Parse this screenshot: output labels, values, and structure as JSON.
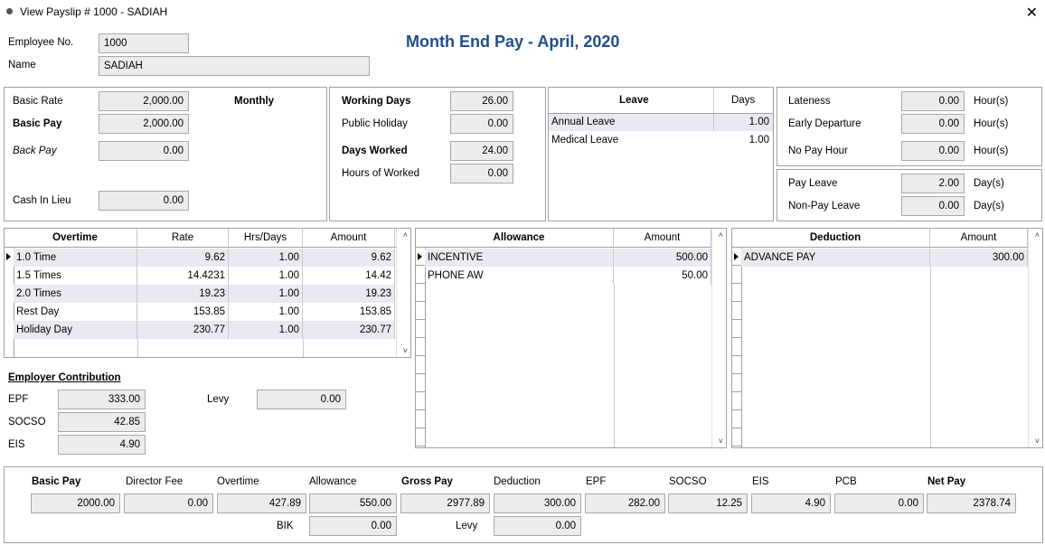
{
  "window": {
    "title": "View Payslip # 1000 - SADIAH"
  },
  "header": {
    "employee_no_label": "Employee No.",
    "employee_no": "1000",
    "name_label": "Name",
    "name": "SADIAH",
    "title": "Month End Pay - April, 2020"
  },
  "basic": {
    "basic_rate_label": "Basic Rate",
    "basic_rate": "2,000.00",
    "rate_type": "Monthly",
    "basic_pay_label": "Basic Pay",
    "basic_pay": "2,000.00",
    "back_pay_label": "Back Pay",
    "back_pay": "0.00",
    "cash_in_lieu_label": "Cash In Lieu",
    "cash_in_lieu": "0.00"
  },
  "days": {
    "working_days_label": "Working Days",
    "working_days": "26.00",
    "public_holiday_label": "Public Holiday",
    "public_holiday": "0.00",
    "days_worked_label": "Days Worked",
    "days_worked": "24.00",
    "hours_worked_label": "Hours of Worked",
    "hours_worked": "0.00"
  },
  "leave": {
    "col_leave": "Leave",
    "col_days": "Days",
    "rows": [
      {
        "name": "Annual Leave",
        "days": "1.00"
      },
      {
        "name": "Medical Leave",
        "days": "1.00"
      }
    ]
  },
  "lateness": {
    "lateness_label": "Lateness",
    "lateness": "0.00",
    "lateness_unit": "Hour(s)",
    "early_label": "Early Departure",
    "early": "0.00",
    "early_unit": "Hour(s)",
    "nopay_label": "No Pay Hour",
    "nopay": "0.00",
    "nopay_unit": "Hour(s)",
    "pay_leave_label": "Pay Leave",
    "pay_leave": "2.00",
    "pay_leave_unit": "Day(s)",
    "nonpay_leave_label": "Non-Pay Leave",
    "nonpay_leave": "0.00",
    "nonpay_leave_unit": "Day(s)"
  },
  "overtime": {
    "cols": [
      "Overtime",
      "Rate",
      "Hrs/Days",
      "Amount"
    ],
    "rows": [
      {
        "type": "1.0 Time",
        "rate": "9.62",
        "hrs": "1.00",
        "amount": "9.62"
      },
      {
        "type": "1.5 Times",
        "rate": "14.4231",
        "hrs": "1.00",
        "amount": "14.42"
      },
      {
        "type": "2.0 Times",
        "rate": "19.23",
        "hrs": "1.00",
        "amount": "19.23"
      },
      {
        "type": "Rest Day",
        "rate": "153.85",
        "hrs": "1.00",
        "amount": "153.85"
      },
      {
        "type": "Holiday Day",
        "rate": "230.77",
        "hrs": "1.00",
        "amount": "230.77"
      }
    ]
  },
  "allowance": {
    "cols": [
      "Allowance",
      "Amount"
    ],
    "rows": [
      {
        "name": "INCENTIVE",
        "amount": "500.00"
      },
      {
        "name": "PHONE AW",
        "amount": "50.00"
      }
    ]
  },
  "deduction": {
    "cols": [
      "Deduction",
      "Amount"
    ],
    "rows": [
      {
        "name": "ADVANCE PAY",
        "amount": "300.00"
      }
    ]
  },
  "employer": {
    "title": "Employer Contribution",
    "epf_label": "EPF",
    "epf": "333.00",
    "socso_label": "SOCSO",
    "socso": "42.85",
    "eis_label": "EIS",
    "eis": "4.90",
    "levy_label": "Levy",
    "levy": "0.00"
  },
  "summary": {
    "labels": [
      "Basic Pay",
      "Director Fee",
      "Overtime",
      "Allowance",
      "Gross Pay",
      "Deduction",
      "EPF",
      "SOCSO",
      "EIS",
      "PCB",
      "Net Pay"
    ],
    "values": [
      "2000.00",
      "0.00",
      "427.89",
      "550.00",
      "2977.89",
      "300.00",
      "282.00",
      "12.25",
      "4.90",
      "0.00",
      "2378.74"
    ],
    "bik_label": "BIK",
    "bik": "0.00",
    "levy_label": "Levy",
    "levy": "0.00"
  }
}
